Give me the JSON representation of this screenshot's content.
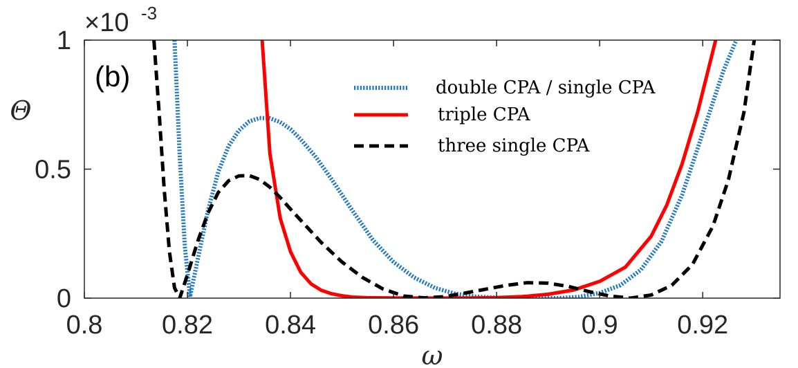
{
  "chart_data": {
    "type": "line",
    "panel_label": "(b)",
    "xlabel": "ω",
    "ylabel": "Θ",
    "xlim": [
      0.8,
      0.935
    ],
    "ylim": [
      0,
      1
    ],
    "y_scale_factor": {
      "base": "×10",
      "exponent": "-3"
    },
    "x_ticks": [
      0.8,
      0.82,
      0.84,
      0.86,
      0.88,
      0.9,
      0.92
    ],
    "x_tick_labels": [
      "0.8",
      "0.82",
      "0.84",
      "0.86",
      "0.88",
      "0.9",
      "0.92"
    ],
    "y_ticks": [
      0,
      0.5,
      1
    ],
    "y_tick_labels": [
      "0",
      "0.5",
      "1"
    ],
    "legend_position": "top-right",
    "series": [
      {
        "name": "double CPA / single CPA",
        "color": "#1f77c4",
        "style": "dotted",
        "x": [
          0.8175,
          0.8185,
          0.8195,
          0.8205,
          0.822,
          0.824,
          0.826,
          0.828,
          0.83,
          0.832,
          0.834,
          0.836,
          0.838,
          0.84,
          0.842,
          0.845,
          0.848,
          0.852,
          0.856,
          0.86,
          0.864,
          0.868,
          0.872,
          0.876,
          0.88,
          0.884,
          0.888,
          0.892,
          0.896,
          0.9,
          0.904,
          0.908,
          0.912,
          0.916,
          0.919,
          0.922,
          0.924,
          0.9265
        ],
        "y": [
          1.0,
          0.55,
          0.2,
          0.005,
          0.15,
          0.34,
          0.49,
          0.59,
          0.65,
          0.685,
          0.698,
          0.697,
          0.682,
          0.655,
          0.615,
          0.545,
          0.46,
          0.34,
          0.225,
          0.14,
          0.08,
          0.04,
          0.017,
          0.006,
          0.002,
          0.001,
          0.0,
          0.0,
          0.005,
          0.02,
          0.05,
          0.11,
          0.22,
          0.4,
          0.58,
          0.76,
          0.88,
          1.0
        ]
      },
      {
        "name": "triple CPA",
        "color": "#ff0000",
        "style": "solid",
        "x": [
          0.8345,
          0.836,
          0.838,
          0.84,
          0.842,
          0.844,
          0.846,
          0.848,
          0.85,
          0.852,
          0.855,
          0.86,
          0.865,
          0.87,
          0.875,
          0.88,
          0.885,
          0.89,
          0.895,
          0.9,
          0.905,
          0.91,
          0.913,
          0.916,
          0.919,
          0.921,
          0.9225
        ],
        "y": [
          1.0,
          0.56,
          0.31,
          0.18,
          0.1,
          0.055,
          0.03,
          0.017,
          0.009,
          0.004,
          0.0015,
          0.0005,
          0.0002,
          0.0003,
          0.0008,
          0.002,
          0.006,
          0.015,
          0.032,
          0.065,
          0.12,
          0.24,
          0.36,
          0.52,
          0.72,
          0.88,
          1.0
        ]
      },
      {
        "name": "three single CPA",
        "color": "#000000",
        "style": "dashed",
        "x": [
          0.8135,
          0.8145,
          0.8155,
          0.8165,
          0.8175,
          0.8185,
          0.82,
          0.822,
          0.824,
          0.826,
          0.828,
          0.83,
          0.832,
          0.834,
          0.836,
          0.838,
          0.84,
          0.843,
          0.846,
          0.85,
          0.854,
          0.858,
          0.862,
          0.866,
          0.87,
          0.874,
          0.878,
          0.882,
          0.886,
          0.89,
          0.894,
          0.898,
          0.902,
          0.906,
          0.91,
          0.914,
          0.918,
          0.922,
          0.925,
          0.928,
          0.93
        ],
        "y": [
          1.0,
          0.72,
          0.42,
          0.18,
          0.04,
          0.0,
          0.09,
          0.22,
          0.33,
          0.41,
          0.455,
          0.474,
          0.475,
          0.46,
          0.43,
          0.39,
          0.345,
          0.28,
          0.215,
          0.14,
          0.08,
          0.035,
          0.008,
          0.001,
          0.006,
          0.02,
          0.035,
          0.05,
          0.06,
          0.058,
          0.045,
          0.025,
          0.008,
          0.0,
          0.012,
          0.05,
          0.13,
          0.28,
          0.46,
          0.72,
          1.0
        ]
      }
    ]
  }
}
